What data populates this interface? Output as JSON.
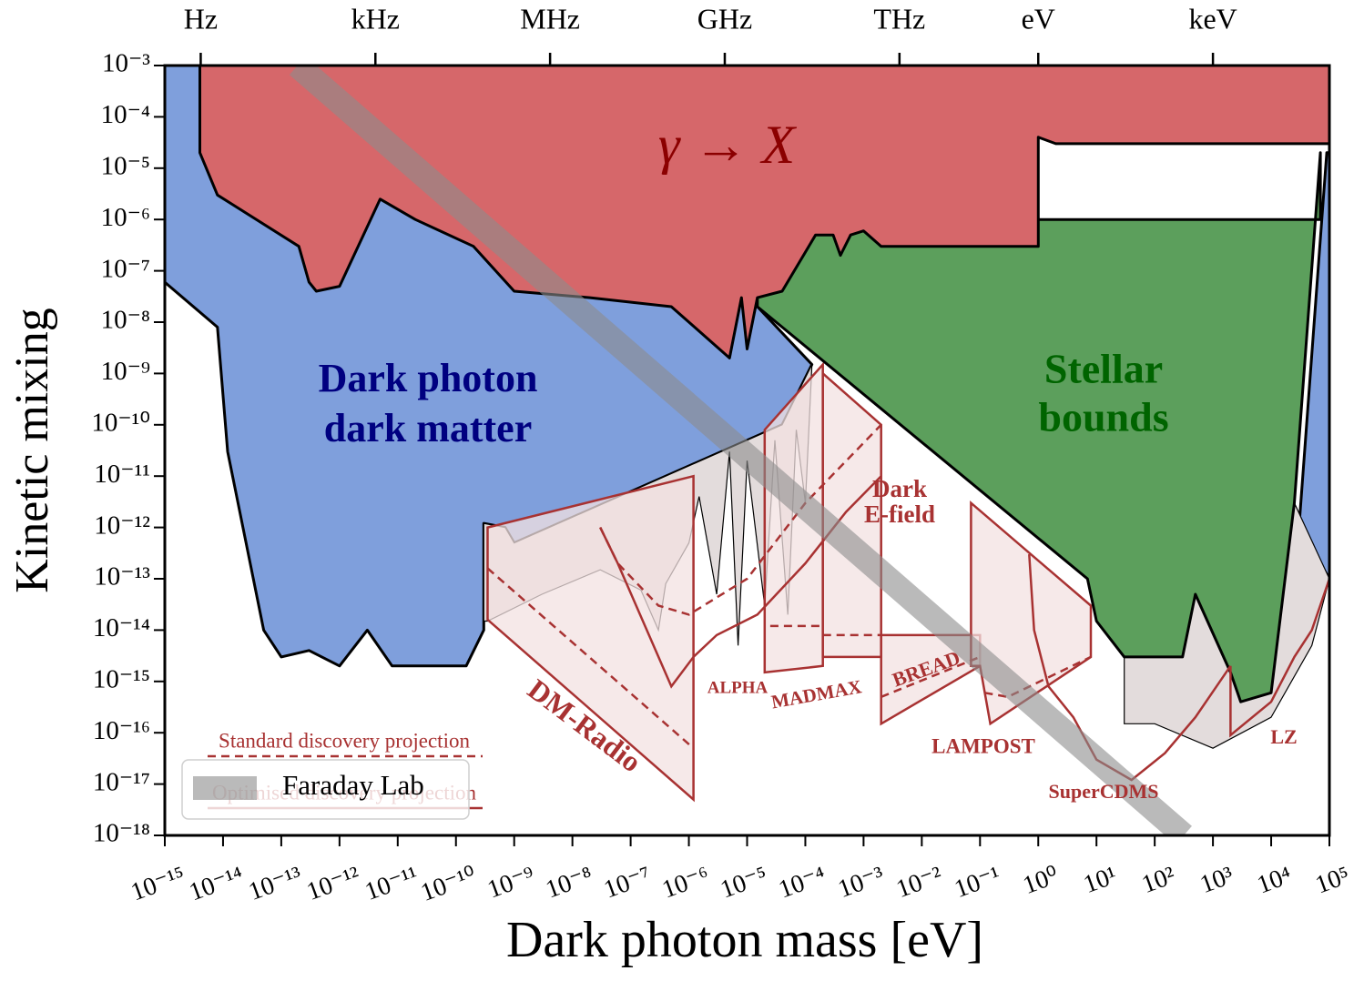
{
  "chart_data": {
    "type": "area",
    "xlabel": "Dark photon mass [eV]",
    "ylabel": "Kinetic mixing",
    "xscale": "log",
    "yscale": "log",
    "xlim": [
      1e-15,
      100000.0
    ],
    "ylim": [
      1e-18,
      0.001
    ],
    "xticks": [
      {
        "value": 1e-15,
        "label": "10⁻¹⁵"
      },
      {
        "value": 1e-14,
        "label": "10⁻¹⁴"
      },
      {
        "value": 1e-13,
        "label": "10⁻¹³"
      },
      {
        "value": 1e-12,
        "label": "10⁻¹²"
      },
      {
        "value": 1e-11,
        "label": "10⁻¹¹"
      },
      {
        "value": 1e-10,
        "label": "10⁻¹⁰"
      },
      {
        "value": 1e-09,
        "label": "10⁻⁹"
      },
      {
        "value": 1e-08,
        "label": "10⁻⁸"
      },
      {
        "value": 1e-07,
        "label": "10⁻⁷"
      },
      {
        "value": 1e-06,
        "label": "10⁻⁶"
      },
      {
        "value": 1e-05,
        "label": "10⁻⁵"
      },
      {
        "value": 0.0001,
        "label": "10⁻⁴"
      },
      {
        "value": 0.001,
        "label": "10⁻³"
      },
      {
        "value": 0.01,
        "label": "10⁻²"
      },
      {
        "value": 0.1,
        "label": "10⁻¹"
      },
      {
        "value": 1,
        "label": "10⁰"
      },
      {
        "value": 10,
        "label": "10¹"
      },
      {
        "value": 100,
        "label": "10²"
      },
      {
        "value": 1000,
        "label": "10³"
      },
      {
        "value": 10000,
        "label": "10⁴"
      },
      {
        "value": 100000,
        "label": "10⁵"
      }
    ],
    "yticks": [
      {
        "value": 1e-18,
        "label": "10⁻¹⁸"
      },
      {
        "value": 1e-17,
        "label": "10⁻¹⁷"
      },
      {
        "value": 1e-16,
        "label": "10⁻¹⁶"
      },
      {
        "value": 1e-15,
        "label": "10⁻¹⁵"
      },
      {
        "value": 1e-14,
        "label": "10⁻¹⁴"
      },
      {
        "value": 1e-13,
        "label": "10⁻¹³"
      },
      {
        "value": 1e-12,
        "label": "10⁻¹²"
      },
      {
        "value": 1e-11,
        "label": "10⁻¹¹"
      },
      {
        "value": 1e-10,
        "label": "10⁻¹⁰"
      },
      {
        "value": 1e-09,
        "label": "10⁻⁹"
      },
      {
        "value": 1e-08,
        "label": "10⁻⁸"
      },
      {
        "value": 1e-07,
        "label": "10⁻⁷"
      },
      {
        "value": 1e-06,
        "label": "10⁻⁶"
      },
      {
        "value": 1e-05,
        "label": "10⁻⁵"
      },
      {
        "value": 0.0001,
        "label": "10⁻⁴"
      },
      {
        "value": 0.001,
        "label": "10⁻³"
      }
    ],
    "x2ticks": [
      {
        "value": 4.136e-15,
        "label": "Hz"
      },
      {
        "value": 4.136e-12,
        "label": "kHz"
      },
      {
        "value": 4.136e-09,
        "label": "MHz"
      },
      {
        "value": 4.136e-06,
        "label": "GHz"
      },
      {
        "value": 0.004136,
        "label": "THz"
      },
      {
        "value": 1,
        "label": "eV"
      },
      {
        "value": 1000,
        "label": "keV"
      }
    ],
    "series": [
      {
        "kind": "fill",
        "color": "#7f9fdc",
        "x": [
          1e-15,
          1e-15,
          8e-15,
          1.2e-14,
          5e-14,
          1e-13,
          3e-13,
          1e-12,
          3e-12,
          8e-12,
          1.5e-10,
          3e-10,
          3e-10,
          7e-10,
          1e-09,
          4e-05,
          0.00013,
          1.5e-05,
          1.5e-05,
          null,
          90000.0,
          100000.0,
          100000.0,
          30000.0
        ],
        "values": [
          0.001,
          6e-08,
          8e-09,
          3e-11,
          1e-14,
          3e-15,
          4e-15,
          2e-15,
          1e-14,
          2e-15,
          2e-15,
          1e-14,
          1.2e-12,
          1e-12,
          5e-13,
          1e-10,
          1.5e-09,
          2e-08,
          0.001,
          null,
          2e-05,
          2e-05,
          1e-13,
          1e-12
        ]
      },
      {
        "kind": "gray",
        "color": "#e3dcdc",
        "x": [
          3e-10,
          7e-10,
          1e-09,
          4e-05,
          0.00013,
          0.0001,
          7e-05,
          5e-05,
          3e-05,
          2e-05,
          1e-05,
          7e-06,
          5e-06,
          3e-06,
          1.5e-06,
          1e-06,
          4e-07,
          3e-07,
          1.5e-07,
          3e-08,
          3e-09,
          3.5e-10,
          3e-10
        ],
        "values": [
          1.2e-12,
          1e-12,
          5e-13,
          1e-10,
          1.5e-09,
          3e-12,
          8e-11,
          2e-14,
          5e-11,
          3e-14,
          2e-11,
          5e-15,
          3e-11,
          5e-14,
          4e-12,
          5e-13,
          8e-14,
          1e-14,
          6e-14,
          1.5e-13,
          5e-14,
          1.5e-14,
          1.5e-14
        ]
      },
      {
        "kind": "gray",
        "color": "#e3dcdc",
        "x": [
          7,
          10,
          30,
          300,
          500,
          2000,
          3000,
          10000,
          25000,
          100000,
          100000,
          50000,
          10000,
          1000,
          100,
          30,
          30
        ],
        "values": [
          1e-13,
          1.5e-14,
          3e-15,
          3e-15,
          5e-14,
          1.5e-15,
          4e-16,
          6e-16,
          3e-12,
          1e-13,
          1e-13,
          5e-15,
          2e-16,
          5e-17,
          1.5e-16,
          1.5e-16,
          3e-15
        ]
      },
      {
        "kind": "projection",
        "color": "#a83232",
        "x": [
          3.5e-10,
          1.2e-06,
          1.2e-06,
          3.5e-10
        ],
        "values": [
          1.6e-14,
          5e-18,
          1e-11,
          1e-12
        ]
      },
      {
        "kind": "projection",
        "color": "#a83232",
        "x": [
          2e-05,
          2e-05,
          0.0002,
          0.0002
        ],
        "values": [
          8e-11,
          1.5e-15,
          2e-15,
          1.5e-09
        ]
      },
      {
        "kind": "projection",
        "color": "#a83232",
        "x": [
          0.0002,
          0.002,
          0.002,
          0.0002
        ],
        "values": [
          3e-15,
          3e-15,
          1e-10,
          1e-09
        ]
      },
      {
        "kind": "projection",
        "color": "#a83232",
        "x": [
          0.002,
          0.002,
          0.1,
          0.1
        ],
        "values": [
          8e-15,
          1.5e-16,
          2e-15,
          8e-15
        ]
      },
      {
        "kind": "projection",
        "color": "#a83232",
        "x": [
          0.07,
          0.07,
          0.1,
          0.15,
          8,
          8
        ],
        "values": [
          3e-12,
          2e-15,
          2e-15,
          1.5e-16,
          3e-15,
          3e-14
        ]
      },
      {
        "kind": "fill",
        "color": "#5c9f5c",
        "x": [
          1.5e-05,
          1.5e-05,
          70000.0,
          70000.0,
          25000.0,
          10000.0,
          3000,
          2000,
          500,
          300,
          30,
          10,
          7
        ],
        "values": [
          2e-08,
          1e-06,
          1e-06,
          2e-05,
          3e-12,
          6e-16,
          4e-16,
          1.5e-15,
          5e-14,
          3e-15,
          3e-15,
          1.5e-14,
          1e-13
        ]
      },
      {
        "kind": "fill",
        "color": "#d6676a",
        "x": [
          4e-15,
          4e-15,
          8e-15,
          2e-13,
          3e-13,
          4e-13,
          1e-12,
          5e-12,
          2e-11,
          2e-10,
          1e-09,
          2e-08,
          5e-07,
          5e-06,
          8e-06,
          1e-05,
          1.5e-05,
          4e-05,
          0.00015,
          0.0003,
          0.0004,
          0.0006,
          0.001,
          0.002,
          1,
          1,
          2,
          3000,
          100000.0,
          100000.0
        ],
        "values": [
          0.001,
          2e-05,
          3e-06,
          3e-07,
          6e-08,
          4e-08,
          5e-08,
          2.5e-06,
          1e-06,
          3e-07,
          4e-08,
          3e-08,
          2e-08,
          2e-09,
          3e-08,
          3e-09,
          3e-08,
          4e-08,
          5e-07,
          5e-07,
          2e-07,
          5e-07,
          6e-07,
          3e-07,
          3e-07,
          4e-05,
          3e-05,
          3e-05,
          3e-05,
          0.001
        ]
      },
      {
        "kind": "dashed",
        "color": "#a83232",
        "x": [
          3.5e-10,
          1.2e-06
        ],
        "values": [
          1.6e-13,
          5e-17
        ]
      },
      {
        "kind": "dashed",
        "color": "#a83232",
        "x": [
          2.5e-05,
          0.0002
        ],
        "values": [
          1.2e-14,
          1.2e-14
        ]
      },
      {
        "kind": "dashed",
        "color": "#a83232",
        "x": [
          0.0002,
          0.002
        ],
        "values": [
          8e-15,
          8e-15
        ]
      },
      {
        "kind": "dashed",
        "color": "#a83232",
        "x": [
          0.002,
          0.1
        ],
        "values": [
          5e-16,
          3e-15
        ]
      },
      {
        "kind": "dashed",
        "color": "#a83232",
        "x": [
          0.12,
          0.3,
          8
        ],
        "values": [
          6e-16,
          5e-16,
          3e-15
        ]
      },
      {
        "kind": "dashed",
        "color": "#a83232",
        "x": [
          3e-08,
          6e-08,
          3e-07,
          1e-06,
          1e-05,
          0.0001,
          0.002
        ],
        "values": [
          1e-12,
          2e-13,
          3e-14,
          2e-14,
          1e-13,
          3e-12,
          1e-10
        ]
      },
      {
        "kind": "line",
        "color": "#a83232",
        "x": [
          3e-08,
          6e-08,
          5e-07,
          1.2e-06,
          3e-06,
          1.5e-05,
          0.0001,
          0.0005,
          0.002
        ],
        "values": [
          1e-12,
          2e-13,
          8e-16,
          3e-15,
          8e-15,
          2e-14,
          2e-13,
          2e-12,
          1e-11
        ]
      },
      {
        "kind": "line",
        "color": "#a83232",
        "x": [
          0.7,
          0.85,
          1.5,
          4,
          10,
          40,
          150,
          500,
          2000
        ],
        "values": [
          3e-13,
          1e-14,
          8e-16,
          2e-16,
          3e-17,
          1.2e-17,
          4e-17,
          2e-16,
          2e-15
        ]
      },
      {
        "kind": "line",
        "color": "#a83232",
        "x": [
          2000,
          2000,
          10000,
          25000,
          50000,
          100000
        ],
        "values": [
          2e-15,
          9e-17,
          4e-16,
          3e-15,
          1e-14,
          1e-13
        ]
      },
      {
        "kind": "band",
        "name": "Faraday Lab",
        "color": "#8c8c8c",
        "x": [
          1.9e-13,
          316
        ],
        "values": [
          0.001,
          1e-18
        ]
      }
    ],
    "projection_legend": {
      "color": "#a83232",
      "entries": [
        {
          "label": "Standard discovery projection",
          "style": "dashed"
        },
        {
          "label": "Optimised discovery projection",
          "style": "solid"
        }
      ]
    },
    "annotations": [
      {
        "text": [
          "γ → X"
        ],
        "color": "#8b0000"
      },
      {
        "text": [
          "Dark photon",
          "dark matter"
        ],
        "color": "#000080"
      },
      {
        "text": [
          "Stellar",
          "bounds"
        ],
        "color": "#006400"
      },
      {
        "text": [
          "Dark",
          "E-field"
        ],
        "color": "#a83232"
      },
      {
        "text": [
          "DM-Radio"
        ],
        "color": "#a83232"
      },
      {
        "text": [
          "ALPHA"
        ],
        "color": "#a83232"
      },
      {
        "text": [
          "MADMAX"
        ],
        "color": "#a83232"
      },
      {
        "text": [
          "BREAD"
        ],
        "color": "#a83232"
      },
      {
        "text": [
          "LAMPOST"
        ],
        "color": "#a83232"
      },
      {
        "text": [
          "SuperCDMS"
        ],
        "color": "#a83232"
      },
      {
        "text": [
          "LZ"
        ],
        "color": "#a83232"
      }
    ]
  }
}
